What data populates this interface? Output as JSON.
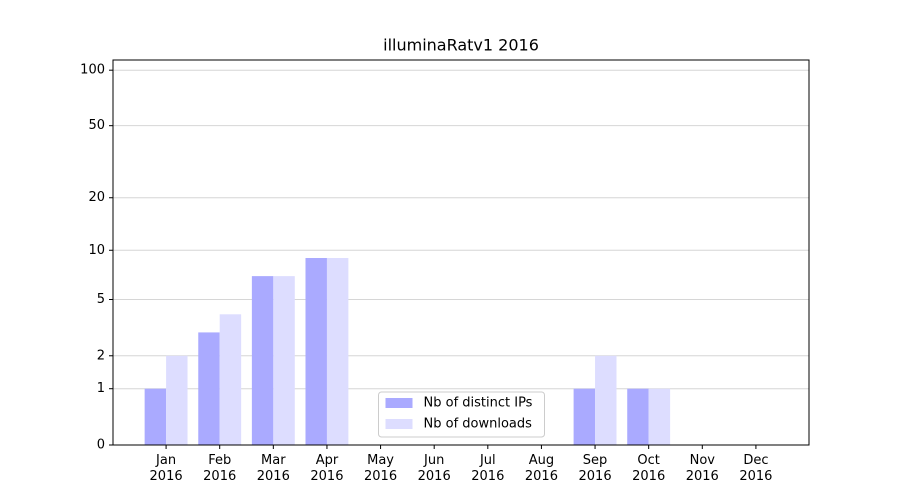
{
  "chart_data": {
    "type": "bar",
    "title": "illuminaRatv1 2016",
    "categories": [
      "Jan 2016",
      "Feb 2016",
      "Mar 2016",
      "Apr 2016",
      "May 2016",
      "Jun 2016",
      "Jul 2016",
      "Aug 2016",
      "Sep 2016",
      "Oct 2016",
      "Nov 2016",
      "Dec 2016"
    ],
    "series": [
      {
        "name": "Nb of distinct IPs",
        "color": "#aaaaff",
        "values": [
          1,
          3,
          7,
          9,
          0,
          0,
          0,
          0,
          1,
          1,
          0,
          0
        ]
      },
      {
        "name": "Nb of downloads",
        "color": "#ddddff",
        "values": [
          2,
          4,
          7,
          9,
          0,
          0,
          0,
          0,
          2,
          1,
          0,
          0
        ]
      }
    ],
    "yscale": "log1p",
    "ylim": [
      0,
      113.5
    ],
    "yticks": [
      0,
      1,
      2,
      5,
      10,
      20,
      50,
      100
    ],
    "grid": true,
    "legend": "lower center"
  }
}
